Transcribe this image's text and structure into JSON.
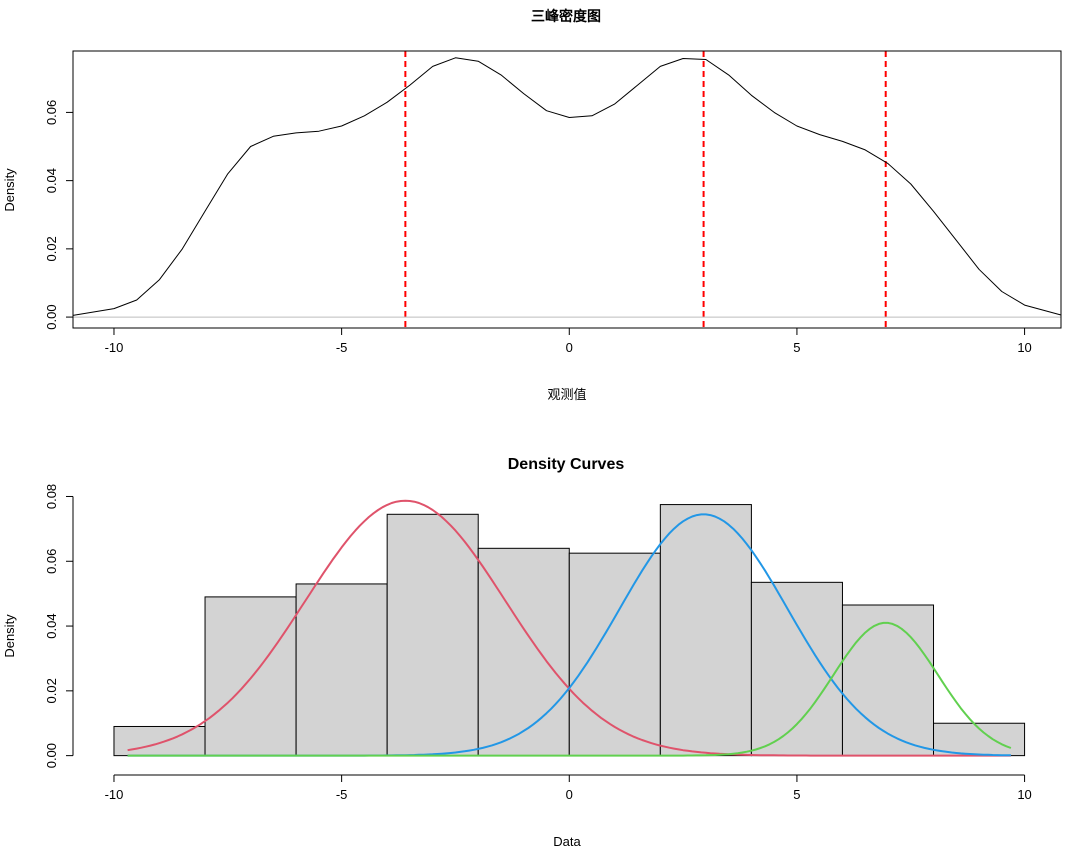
{
  "chart_data": [
    {
      "type": "line",
      "title": "三峰密度图",
      "xlabel": "观测值",
      "ylabel": "Density",
      "xlim": [
        -10.9,
        10.8
      ],
      "ylim": [
        -0.0032,
        0.078
      ],
      "x_ticks": [
        -10,
        -5,
        0,
        5,
        10
      ],
      "y_ticks": [
        0.0,
        0.02,
        0.04,
        0.06
      ],
      "x_tick_labels": [
        "-10",
        "-5",
        "0",
        "5",
        "10"
      ],
      "y_tick_labels": [
        "0.00",
        "0.02",
        "0.04",
        "0.06"
      ],
      "grid": false,
      "series": [
        {
          "color": "#000000",
          "x": [
            -10.9,
            -10,
            -9.5,
            -9,
            -8.5,
            -8,
            -7.5,
            -7,
            -6.5,
            -6,
            -5.5,
            -5,
            -4.5,
            -4,
            -3.5,
            -3,
            -2.5,
            -2,
            -1.5,
            -1,
            -0.5,
            0,
            0.5,
            1,
            1.5,
            2,
            2.5,
            3,
            3.5,
            4,
            4.5,
            5,
            5.5,
            6,
            6.5,
            7,
            7.5,
            8,
            8.5,
            9,
            9.5,
            10,
            10.8
          ],
          "y": [
            0.0005,
            0.0025,
            0.005,
            0.011,
            0.02,
            0.031,
            0.042,
            0.05,
            0.053,
            0.054,
            0.0545,
            0.056,
            0.059,
            0.063,
            0.068,
            0.0735,
            0.076,
            0.075,
            0.071,
            0.0655,
            0.0605,
            0.0585,
            0.059,
            0.0625,
            0.068,
            0.0735,
            0.0758,
            0.0755,
            0.071,
            0.065,
            0.06,
            0.056,
            0.0535,
            0.0515,
            0.049,
            0.045,
            0.039,
            0.031,
            0.0225,
            0.014,
            0.0075,
            0.0035,
            0.0006
          ]
        }
      ],
      "baseline": {
        "y": 0,
        "color": "#bebebe"
      },
      "vlines": {
        "x": [
          -3.6,
          2.95,
          6.95
        ],
        "color": "#ff0000",
        "style": "dashed"
      }
    },
    {
      "type": "bar",
      "title": "Density Curves",
      "xlabel": "Data",
      "ylabel": "Density",
      "xlim": [
        -10.9,
        10.8
      ],
      "ylim": [
        -0.0032,
        0.082
      ],
      "x_ticks": [
        -10,
        -5,
        0,
        5,
        10
      ],
      "y_ticks": [
        0.0,
        0.02,
        0.04,
        0.06,
        0.08
      ],
      "x_tick_labels": [
        "-10",
        "-5",
        "0",
        "5",
        "10"
      ],
      "y_tick_labels": [
        "0.00",
        "0.02",
        "0.04",
        "0.06",
        "0.08"
      ],
      "grid": false,
      "histogram": {
        "breaks": [
          -10,
          -8,
          -6,
          -4,
          -2,
          0,
          2,
          4,
          6,
          8,
          10
        ],
        "values": [
          0.009,
          0.049,
          0.053,
          0.0745,
          0.064,
          0.0625,
          0.0775,
          0.0535,
          0.0465,
          0.01
        ],
        "fill": "#d3d3d3",
        "border": "#000000"
      },
      "series": [
        {
          "color": "#df536b",
          "mean": -3.6,
          "sd": 2.2,
          "peak": 0.0787,
          "x_range": [
            -9.7,
            9.7
          ]
        },
        {
          "color": "#2297e6",
          "mean": 2.95,
          "sd": 1.85,
          "peak": 0.0745,
          "x_range": [
            -9.7,
            9.7
          ]
        },
        {
          "color": "#61d04f",
          "mean": 6.95,
          "sd": 1.15,
          "peak": 0.041,
          "x_range": [
            -9.7,
            9.7
          ]
        }
      ]
    }
  ]
}
